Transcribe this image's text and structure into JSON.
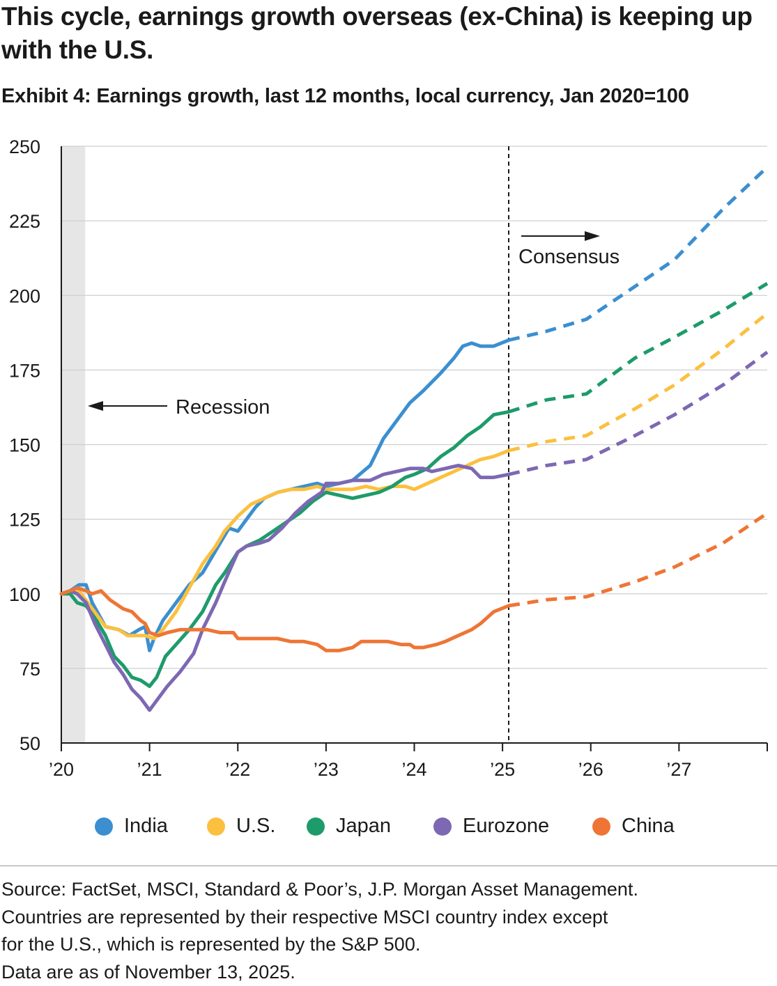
{
  "title": "This cycle, earnings growth overseas (ex-China) is keeping up with the U.S.",
  "subtitle": "Exhibit 4: Earnings growth, last 12 months, local currency, Jan 2020=100",
  "annotations": {
    "recession": "Recession",
    "consensus": "Consensus"
  },
  "legend": [
    {
      "label": "India",
      "color": "#3B8FD0"
    },
    {
      "label": "U.S.",
      "color": "#FBC03F"
    },
    {
      "label": "Japan",
      "color": "#1E9B6B"
    },
    {
      "label": "Eurozone",
      "color": "#7D68B3"
    },
    {
      "label": "China",
      "color": "#EE7535"
    }
  ],
  "source": [
    "Source: FactSet, MSCI, Standard & Poor’s, J.P. Morgan Asset Management.",
    "Countries are represented by their respective MSCI country index except",
    "for the U.S., which is represented by the S&P 500.",
    "Data are as of November 13, 2025."
  ],
  "chart_data": {
    "type": "line",
    "x_unit": "year",
    "xlim": [
      2020.0,
      2028.0
    ],
    "ylim": [
      50,
      250
    ],
    "y_ticks": [
      50,
      75,
      100,
      125,
      150,
      175,
      200,
      225,
      250
    ],
    "x_ticks": [
      {
        "x": 2020,
        "label": "’20"
      },
      {
        "x": 2021,
        "label": "’21"
      },
      {
        "x": 2022,
        "label": "’22"
      },
      {
        "x": 2023,
        "label": "’23"
      },
      {
        "x": 2024,
        "label": "’24"
      },
      {
        "x": 2025,
        "label": "’25"
      },
      {
        "x": 2026,
        "label": "’26"
      },
      {
        "x": 2027,
        "label": "’27"
      }
    ],
    "grid": "horizontal",
    "recession_band": [
      2020.0,
      2020.27
    ],
    "consensus_line_x": 2025.07,
    "series": [
      {
        "name": "India",
        "color": "#3B8FD0",
        "actual": [
          [
            2020.0,
            100
          ],
          [
            2020.1,
            101
          ],
          [
            2020.2,
            103
          ],
          [
            2020.28,
            103
          ],
          [
            2020.35,
            97
          ],
          [
            2020.5,
            89
          ],
          [
            2020.65,
            88
          ],
          [
            2020.77,
            86
          ],
          [
            2020.88,
            88
          ],
          [
            2020.95,
            89
          ],
          [
            2021.0,
            81
          ],
          [
            2021.05,
            85
          ],
          [
            2021.15,
            91
          ],
          [
            2021.3,
            97
          ],
          [
            2021.45,
            103
          ],
          [
            2021.6,
            107
          ],
          [
            2021.7,
            112
          ],
          [
            2021.8,
            117
          ],
          [
            2021.9,
            122
          ],
          [
            2022.0,
            121
          ],
          [
            2022.1,
            125
          ],
          [
            2022.2,
            129
          ],
          [
            2022.3,
            132
          ],
          [
            2022.45,
            134
          ],
          [
            2022.6,
            135
          ],
          [
            2022.75,
            136
          ],
          [
            2022.9,
            137
          ],
          [
            2023.0,
            136
          ],
          [
            2023.15,
            137
          ],
          [
            2023.3,
            138
          ],
          [
            2023.5,
            143
          ],
          [
            2023.65,
            152
          ],
          [
            2023.8,
            158
          ],
          [
            2023.95,
            164
          ],
          [
            2024.1,
            168
          ],
          [
            2024.3,
            174
          ],
          [
            2024.45,
            179
          ],
          [
            2024.55,
            183
          ],
          [
            2024.65,
            184
          ],
          [
            2024.75,
            183
          ],
          [
            2024.9,
            183
          ],
          [
            2025.07,
            185
          ]
        ],
        "forecast": [
          [
            2025.07,
            185
          ],
          [
            2025.5,
            188
          ],
          [
            2025.95,
            192
          ],
          [
            2026.5,
            203
          ],
          [
            2026.95,
            212
          ],
          [
            2027.5,
            229
          ],
          [
            2028.0,
            243
          ]
        ]
      },
      {
        "name": "U.S.",
        "color": "#FBC03F",
        "actual": [
          [
            2020.0,
            100
          ],
          [
            2020.1,
            101
          ],
          [
            2020.2,
            101
          ],
          [
            2020.3,
            97
          ],
          [
            2020.4,
            93
          ],
          [
            2020.5,
            89
          ],
          [
            2020.65,
            88
          ],
          [
            2020.75,
            86
          ],
          [
            2020.85,
            86
          ],
          [
            2020.95,
            86
          ],
          [
            2021.05,
            85
          ],
          [
            2021.15,
            88
          ],
          [
            2021.3,
            94
          ],
          [
            2021.45,
            102
          ],
          [
            2021.6,
            110
          ],
          [
            2021.75,
            116
          ],
          [
            2021.85,
            121
          ],
          [
            2022.0,
            126
          ],
          [
            2022.15,
            130
          ],
          [
            2022.3,
            132
          ],
          [
            2022.45,
            134
          ],
          [
            2022.6,
            135
          ],
          [
            2022.75,
            135
          ],
          [
            2022.9,
            136
          ],
          [
            2023.0,
            135
          ],
          [
            2023.15,
            135
          ],
          [
            2023.3,
            135
          ],
          [
            2023.45,
            136
          ],
          [
            2023.6,
            135
          ],
          [
            2023.75,
            136
          ],
          [
            2023.9,
            136
          ],
          [
            2024.0,
            135
          ],
          [
            2024.15,
            137
          ],
          [
            2024.3,
            139
          ],
          [
            2024.45,
            141
          ],
          [
            2024.6,
            143
          ],
          [
            2024.75,
            145
          ],
          [
            2024.9,
            146
          ],
          [
            2025.07,
            148
          ]
        ],
        "forecast": [
          [
            2025.07,
            148
          ],
          [
            2025.5,
            151
          ],
          [
            2025.95,
            153
          ],
          [
            2026.5,
            162
          ],
          [
            2026.95,
            170
          ],
          [
            2027.5,
            182
          ],
          [
            2028.0,
            194
          ]
        ]
      },
      {
        "name": "Japan",
        "color": "#1E9B6B",
        "actual": [
          [
            2020.0,
            100
          ],
          [
            2020.1,
            100
          ],
          [
            2020.18,
            97
          ],
          [
            2020.28,
            96
          ],
          [
            2020.4,
            91
          ],
          [
            2020.5,
            86
          ],
          [
            2020.6,
            79
          ],
          [
            2020.7,
            76
          ],
          [
            2020.8,
            72
          ],
          [
            2020.9,
            71
          ],
          [
            2021.0,
            69
          ],
          [
            2021.08,
            72
          ],
          [
            2021.18,
            79
          ],
          [
            2021.3,
            83
          ],
          [
            2021.45,
            88
          ],
          [
            2021.6,
            94
          ],
          [
            2021.75,
            103
          ],
          [
            2021.85,
            107
          ],
          [
            2022.0,
            114
          ],
          [
            2022.1,
            116
          ],
          [
            2022.25,
            118
          ],
          [
            2022.4,
            121
          ],
          [
            2022.55,
            124
          ],
          [
            2022.7,
            127
          ],
          [
            2022.85,
            131
          ],
          [
            2023.0,
            134
          ],
          [
            2023.15,
            133
          ],
          [
            2023.3,
            132
          ],
          [
            2023.45,
            133
          ],
          [
            2023.6,
            134
          ],
          [
            2023.75,
            136
          ],
          [
            2023.9,
            139
          ],
          [
            2024.0,
            140
          ],
          [
            2024.15,
            142
          ],
          [
            2024.3,
            146
          ],
          [
            2024.45,
            149
          ],
          [
            2024.6,
            153
          ],
          [
            2024.75,
            156
          ],
          [
            2024.9,
            160
          ],
          [
            2025.07,
            161
          ]
        ],
        "forecast": [
          [
            2025.07,
            161
          ],
          [
            2025.5,
            165
          ],
          [
            2025.95,
            167
          ],
          [
            2026.5,
            179
          ],
          [
            2026.95,
            186
          ],
          [
            2027.5,
            195
          ],
          [
            2028.0,
            204
          ]
        ]
      },
      {
        "name": "Eurozone",
        "color": "#7D68B3",
        "actual": [
          [
            2020.0,
            100
          ],
          [
            2020.1,
            101
          ],
          [
            2020.18,
            100
          ],
          [
            2020.28,
            97
          ],
          [
            2020.38,
            90
          ],
          [
            2020.5,
            83
          ],
          [
            2020.6,
            77
          ],
          [
            2020.7,
            73
          ],
          [
            2020.8,
            68
          ],
          [
            2020.9,
            65
          ],
          [
            2021.0,
            61
          ],
          [
            2021.1,
            65
          ],
          [
            2021.2,
            69
          ],
          [
            2021.35,
            74
          ],
          [
            2021.5,
            80
          ],
          [
            2021.6,
            88
          ],
          [
            2021.75,
            97
          ],
          [
            2021.85,
            104
          ],
          [
            2022.0,
            114
          ],
          [
            2022.1,
            116
          ],
          [
            2022.25,
            117
          ],
          [
            2022.35,
            118
          ],
          [
            2022.5,
            122
          ],
          [
            2022.65,
            127
          ],
          [
            2022.8,
            131
          ],
          [
            2022.95,
            134
          ],
          [
            2023.0,
            137
          ],
          [
            2023.15,
            137
          ],
          [
            2023.3,
            138
          ],
          [
            2023.5,
            138
          ],
          [
            2023.65,
            140
          ],
          [
            2023.8,
            141
          ],
          [
            2023.95,
            142
          ],
          [
            2024.1,
            142
          ],
          [
            2024.2,
            141
          ],
          [
            2024.35,
            142
          ],
          [
            2024.5,
            143
          ],
          [
            2024.65,
            142
          ],
          [
            2024.75,
            139
          ],
          [
            2024.9,
            139
          ],
          [
            2025.07,
            140
          ]
        ],
        "forecast": [
          [
            2025.07,
            140
          ],
          [
            2025.5,
            143
          ],
          [
            2025.95,
            145
          ],
          [
            2026.5,
            153
          ],
          [
            2026.95,
            160
          ],
          [
            2027.5,
            170
          ],
          [
            2028.0,
            181
          ]
        ]
      },
      {
        "name": "China",
        "color": "#EE7535",
        "actual": [
          [
            2020.0,
            100
          ],
          [
            2020.1,
            101
          ],
          [
            2020.18,
            102
          ],
          [
            2020.28,
            101
          ],
          [
            2020.35,
            100
          ],
          [
            2020.45,
            101
          ],
          [
            2020.55,
            98
          ],
          [
            2020.7,
            95
          ],
          [
            2020.8,
            94
          ],
          [
            2020.9,
            91
          ],
          [
            2020.95,
            90
          ],
          [
            2021.0,
            87
          ],
          [
            2021.1,
            86
          ],
          [
            2021.2,
            87
          ],
          [
            2021.35,
            88
          ],
          [
            2021.5,
            88
          ],
          [
            2021.65,
            88
          ],
          [
            2021.8,
            87
          ],
          [
            2021.95,
            87
          ],
          [
            2022.0,
            85
          ],
          [
            2022.15,
            85
          ],
          [
            2022.3,
            85
          ],
          [
            2022.45,
            85
          ],
          [
            2022.6,
            84
          ],
          [
            2022.75,
            84
          ],
          [
            2022.9,
            83
          ],
          [
            2023.0,
            81
          ],
          [
            2023.15,
            81
          ],
          [
            2023.3,
            82
          ],
          [
            2023.4,
            84
          ],
          [
            2023.55,
            84
          ],
          [
            2023.7,
            84
          ],
          [
            2023.85,
            83
          ],
          [
            2023.95,
            83
          ],
          [
            2024.0,
            82
          ],
          [
            2024.1,
            82
          ],
          [
            2024.25,
            83
          ],
          [
            2024.35,
            84
          ],
          [
            2024.5,
            86
          ],
          [
            2024.65,
            88
          ],
          [
            2024.75,
            90
          ],
          [
            2024.9,
            94
          ],
          [
            2025.07,
            96
          ]
        ],
        "forecast": [
          [
            2025.07,
            96
          ],
          [
            2025.5,
            98
          ],
          [
            2025.95,
            99
          ],
          [
            2026.5,
            104
          ],
          [
            2026.95,
            109
          ],
          [
            2027.5,
            117
          ],
          [
            2028.0,
            127
          ]
        ]
      }
    ]
  }
}
